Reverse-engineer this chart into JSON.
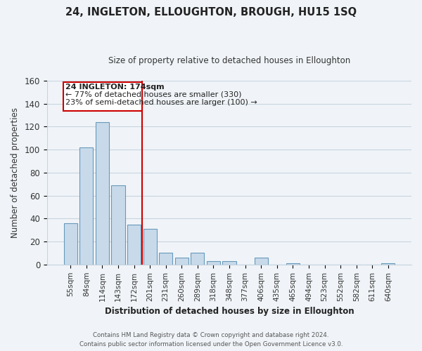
{
  "title": "24, INGLETON, ELLOUGHTON, BROUGH, HU15 1SQ",
  "subtitle": "Size of property relative to detached houses in Elloughton",
  "xlabel": "Distribution of detached houses by size in Elloughton",
  "ylabel": "Number of detached properties",
  "bar_labels": [
    "55sqm",
    "84sqm",
    "114sqm",
    "143sqm",
    "172sqm",
    "201sqm",
    "231sqm",
    "260sqm",
    "289sqm",
    "318sqm",
    "348sqm",
    "377sqm",
    "406sqm",
    "435sqm",
    "465sqm",
    "494sqm",
    "523sqm",
    "552sqm",
    "582sqm",
    "611sqm",
    "640sqm"
  ],
  "bar_values": [
    36,
    102,
    124,
    69,
    35,
    31,
    10,
    6,
    10,
    3,
    3,
    0,
    6,
    0,
    1,
    0,
    0,
    0,
    0,
    0,
    1
  ],
  "bar_color": "#c8daea",
  "bar_edge_color": "#6699bb",
  "vline_x": 4.5,
  "vline_color": "#cc0000",
  "ylim": [
    0,
    160
  ],
  "yticks": [
    0,
    20,
    40,
    60,
    80,
    100,
    120,
    140,
    160
  ],
  "annotation_title": "24 INGLETON: 174sqm",
  "annotation_line1": "← 77% of detached houses are smaller (330)",
  "annotation_line2": "23% of semi-detached houses are larger (100) →",
  "footer_line1": "Contains HM Land Registry data © Crown copyright and database right 2024.",
  "footer_line2": "Contains public sector information licensed under the Open Government Licence v3.0.",
  "bg_color": "#f0f4f8",
  "grid_color": "#c8d4e0",
  "title_fontsize": 10.5,
  "subtitle_fontsize": 8.5
}
